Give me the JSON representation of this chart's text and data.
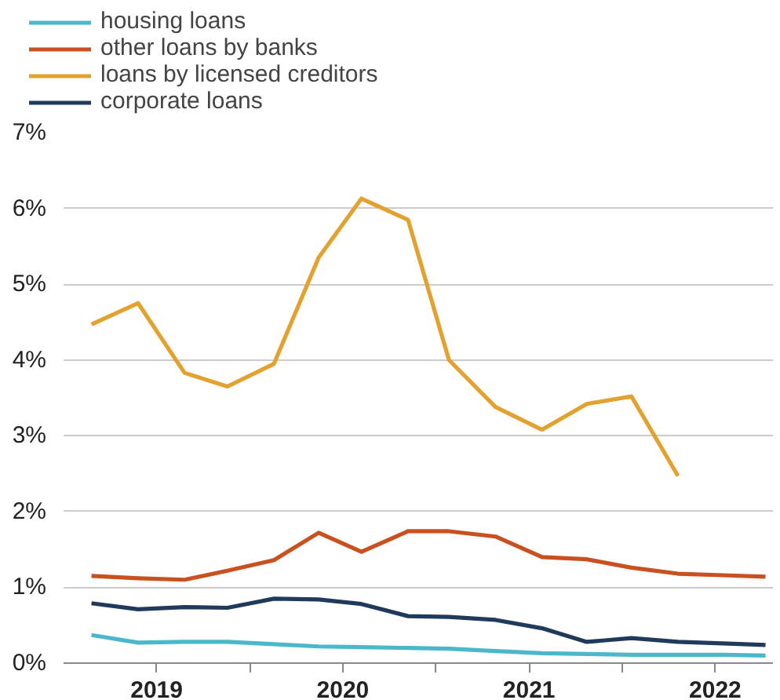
{
  "chart_data": {
    "type": "line",
    "x": [
      2019.15,
      2019.4,
      2019.65,
      2019.88,
      2020.13,
      2020.37,
      2020.6,
      2020.85,
      2021.07,
      2021.32,
      2021.57,
      2021.81,
      2022.05,
      2022.3,
      2022.54,
      2022.77
    ],
    "series": [
      {
        "name": "housing loans",
        "color": "#4bb8c9",
        "values": [
          0.37,
          0.27,
          0.28,
          0.28,
          0.25,
          0.22,
          0.21,
          0.2,
          0.19,
          0.16,
          0.13,
          0.12,
          0.11,
          0.11,
          0.11,
          0.1
        ]
      },
      {
        "name": "other loans by banks",
        "color": "#c8511f",
        "values": [
          1.15,
          1.12,
          1.1,
          1.22,
          1.36,
          1.72,
          1.47,
          1.74,
          1.74,
          1.67,
          1.4,
          1.37,
          1.26,
          1.18,
          1.16,
          1.14
        ]
      },
      {
        "name": "loans by licensed creditors",
        "color": "#e3a230",
        "values": [
          4.47,
          4.75,
          3.83,
          3.65,
          3.95,
          5.35,
          6.13,
          5.85,
          4.0,
          3.38,
          3.08,
          3.42,
          3.52,
          2.47,
          null,
          null
        ]
      },
      {
        "name": "corporate loans",
        "color": "#1f3a5a",
        "values": [
          0.79,
          0.71,
          0.74,
          0.73,
          0.85,
          0.84,
          0.78,
          0.62,
          0.61,
          0.57,
          0.46,
          0.28,
          0.33,
          0.28,
          0.26,
          0.24
        ]
      }
    ],
    "xlim": [
      2019,
      2022.81
    ],
    "xticks": [
      {
        "value": 2019.5,
        "label": "2019"
      },
      {
        "value": 2020,
        "label": null
      },
      {
        "value": 2020.5,
        "label": "2020"
      },
      {
        "value": 2021,
        "label": null
      },
      {
        "value": 2021.5,
        "label": "2021"
      },
      {
        "value": 2022,
        "label": null
      },
      {
        "value": 2022.5,
        "label": "2022"
      }
    ],
    "ylim": [
      0,
      7
    ],
    "yticks": [
      {
        "value": 0,
        "label": "0%"
      },
      {
        "value": 1,
        "label": "1%"
      },
      {
        "value": 2,
        "label": "2%"
      },
      {
        "value": 3,
        "label": "3%"
      },
      {
        "value": 4,
        "label": "4%"
      },
      {
        "value": 5,
        "label": "5%"
      },
      {
        "value": 6,
        "label": "6%"
      },
      {
        "value": 7,
        "label": "7%"
      }
    ],
    "grid": "y",
    "legend": "top left",
    "marker": "none",
    "line_style": "solid"
  }
}
